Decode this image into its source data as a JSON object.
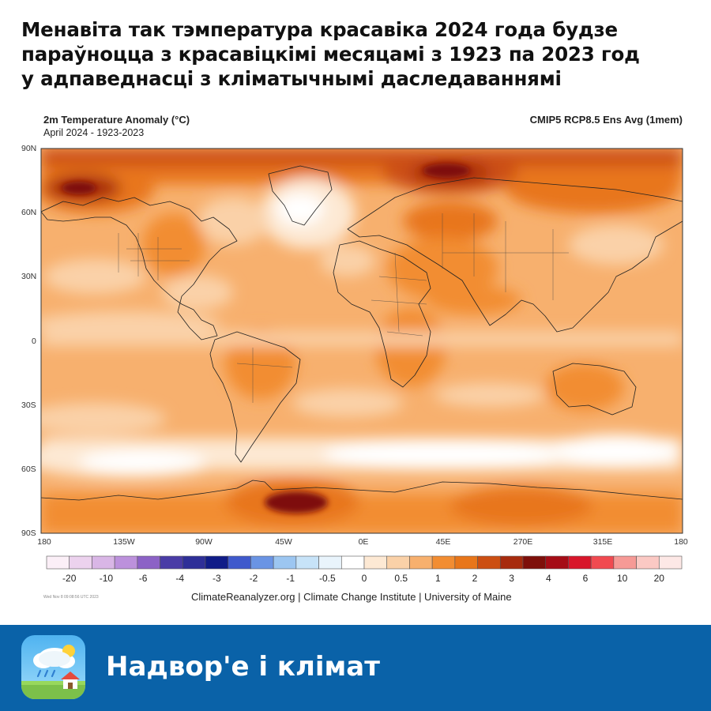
{
  "headline": {
    "lines": [
      "Менавіта так тэмпература красавіка 2024 года будзе",
      "параўноцца з красавіцкімі месяцамі з 1923 па 2023 год",
      "у адпаведнасці з кліматычнымі даследаваннямі"
    ]
  },
  "map": {
    "title": "2m Temperature Anomaly (°C)",
    "subtitle": "April 2024 - 1923-2023",
    "model": "CMIP5 RCP8.5 Ens Avg (1mem)",
    "lat_labels": [
      "90N",
      "60N",
      "30N",
      "0",
      "30S",
      "60S",
      "90S"
    ],
    "lon_labels": [
      "180",
      "135W",
      "90W",
      "45W",
      "0E",
      "45E",
      "270E",
      "315E",
      "180"
    ],
    "colorbar": {
      "colors": [
        "#fbeff7",
        "#ecd2ee",
        "#d9b6e6",
        "#bc91dc",
        "#8c62c6",
        "#4a3ca6",
        "#2e2f98",
        "#101c88",
        "#3f59cc",
        "#6a94e4",
        "#9cc6f1",
        "#c7e3f8",
        "#e9f4fc",
        "#ffffff",
        "#fde9d4",
        "#fad1a8",
        "#f7b06e",
        "#f28d32",
        "#e8761a",
        "#cc4f12",
        "#a72b0e",
        "#7e0f0a",
        "#a50c16",
        "#d8162a",
        "#f14a50",
        "#f69a96",
        "#fbc9c4",
        "#fde8e6"
      ],
      "labels": [
        "-20",
        "-10",
        "-6",
        "-4",
        "-3",
        "-2",
        "-1",
        "-0.5",
        "0",
        "0.5",
        "1",
        "2",
        "3",
        "4",
        "6",
        "10",
        "20"
      ]
    },
    "timestamp": "Wed Nov  8 09:08:56 UTC 2023",
    "credit": "ClimateReanalyzer.org | Climate Change Institute | University of Maine"
  },
  "footer": {
    "brand": "Надвор'е і клімат",
    "icon": "weather-cloud-rain-house-icon",
    "background": "#0a62a8"
  }
}
